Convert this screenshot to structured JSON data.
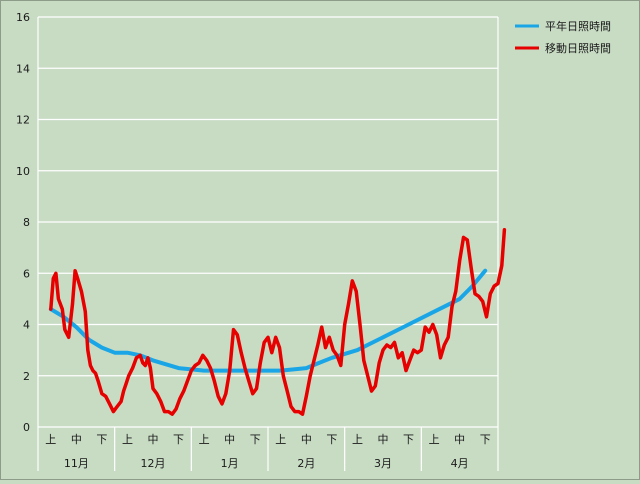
{
  "chart_data": {
    "type": "line",
    "title": "",
    "xlabel": "",
    "ylabel": "",
    "ylim": [
      0,
      16
    ],
    "yticks": [
      0,
      2,
      4,
      6,
      8,
      10,
      12,
      14,
      16
    ],
    "grid": true,
    "legend_position": "top-right",
    "colors": {
      "background": "#c8dcc4",
      "grid": "#ffffff",
      "normal": "#1aa6e6",
      "moving": "#e60000"
    },
    "months": [
      "11月",
      "12月",
      "1月",
      "2月",
      "3月",
      "4月"
    ],
    "periods": [
      "上",
      "中",
      "下"
    ],
    "periods_per_month": 3,
    "series": [
      {
        "name": "平年日照時間",
        "color": "#1aa6e6",
        "x": [
          0,
          0.5,
          1,
          1.5,
          2,
          2.5,
          3,
          3.5,
          4,
          5,
          6,
          7,
          8,
          9,
          10,
          10.5,
          11,
          12,
          13,
          14,
          15,
          16,
          16.5,
          17
        ],
        "values": [
          4.6,
          4.3,
          3.9,
          3.4,
          3.1,
          2.9,
          2.9,
          2.8,
          2.6,
          2.3,
          2.2,
          2.2,
          2.2,
          2.2,
          2.3,
          2.5,
          2.7,
          3.0,
          3.5,
          4.0,
          4.5,
          5.0,
          5.5,
          6.1
        ]
      },
      {
        "name": "移動日照時間",
        "color": "#e60000",
        "x": [
          0,
          0.1,
          0.2,
          0.3,
          0.45,
          0.55,
          0.7,
          0.85,
          0.95,
          1.05,
          1.2,
          1.35,
          1.45,
          1.55,
          1.65,
          1.75,
          1.85,
          2.0,
          2.15,
          2.3,
          2.45,
          2.6,
          2.75,
          2.85,
          2.95,
          3.05,
          3.2,
          3.35,
          3.5,
          3.6,
          3.7,
          3.8,
          3.9,
          4.0,
          4.15,
          4.3,
          4.45,
          4.6,
          4.75,
          4.9,
          5.05,
          5.2,
          5.35,
          5.5,
          5.65,
          5.8,
          5.95,
          6.1,
          6.25,
          6.4,
          6.55,
          6.7,
          6.85,
          7.0,
          7.15,
          7.3,
          7.45,
          7.6,
          7.75,
          7.9,
          8.05,
          8.2,
          8.35,
          8.5,
          8.65,
          8.8,
          8.95,
          9.1,
          9.25,
          9.4,
          9.55,
          9.7,
          9.85,
          10.0,
          10.15,
          10.3,
          10.45,
          10.6,
          10.75,
          10.9,
          11.05,
          11.2,
          11.35,
          11.5,
          11.65,
          11.8,
          11.95,
          12.1,
          12.25,
          12.4,
          12.55,
          12.7,
          12.85,
          13.0,
          13.15,
          13.3,
          13.45,
          13.6,
          13.75,
          13.9,
          14.05,
          14.2,
          14.35,
          14.5,
          14.65,
          14.8,
          14.95,
          15.1,
          15.25,
          15.4,
          15.55,
          15.7,
          15.85,
          16.0,
          16.15,
          16.3,
          16.45,
          16.6,
          16.75,
          16.9,
          17.05,
          17.2,
          17.35,
          17.5,
          17.65,
          17.75
        ],
        "values": [
          4.6,
          5.8,
          6.0,
          5.0,
          4.6,
          3.8,
          3.5,
          4.8,
          6.1,
          5.8,
          5.3,
          4.5,
          3.0,
          2.4,
          2.2,
          2.1,
          1.8,
          1.3,
          1.2,
          0.9,
          0.6,
          0.8,
          1.0,
          1.4,
          1.7,
          2.0,
          2.3,
          2.7,
          2.8,
          2.5,
          2.4,
          2.7,
          2.3,
          1.5,
          1.3,
          1.0,
          0.6,
          0.6,
          0.5,
          0.7,
          1.1,
          1.4,
          1.8,
          2.2,
          2.4,
          2.5,
          2.8,
          2.6,
          2.3,
          1.8,
          1.2,
          0.9,
          1.3,
          2.2,
          3.8,
          3.6,
          2.9,
          2.3,
          1.8,
          1.3,
          1.5,
          2.5,
          3.3,
          3.5,
          2.9,
          3.5,
          3.1,
          2.0,
          1.4,
          0.8,
          0.6,
          0.6,
          0.5,
          1.2,
          2.0,
          2.6,
          3.2,
          3.9,
          3.1,
          3.5,
          3.0,
          2.8,
          2.4,
          4.0,
          4.8,
          5.7,
          5.3,
          4.0,
          2.6,
          2.0,
          1.4,
          1.6,
          2.5,
          3.0,
          3.2,
          3.1,
          3.3,
          2.7,
          2.9,
          2.2,
          2.6,
          3.0,
          2.9,
          3.0,
          3.9,
          3.7,
          4.0,
          3.6,
          2.7,
          3.2,
          3.5,
          4.7,
          5.3,
          6.5,
          7.4,
          7.3,
          6.2,
          5.2,
          5.1,
          4.9,
          4.3,
          5.2,
          5.5,
          5.6,
          6.3,
          7.7
        ]
      }
    ]
  }
}
